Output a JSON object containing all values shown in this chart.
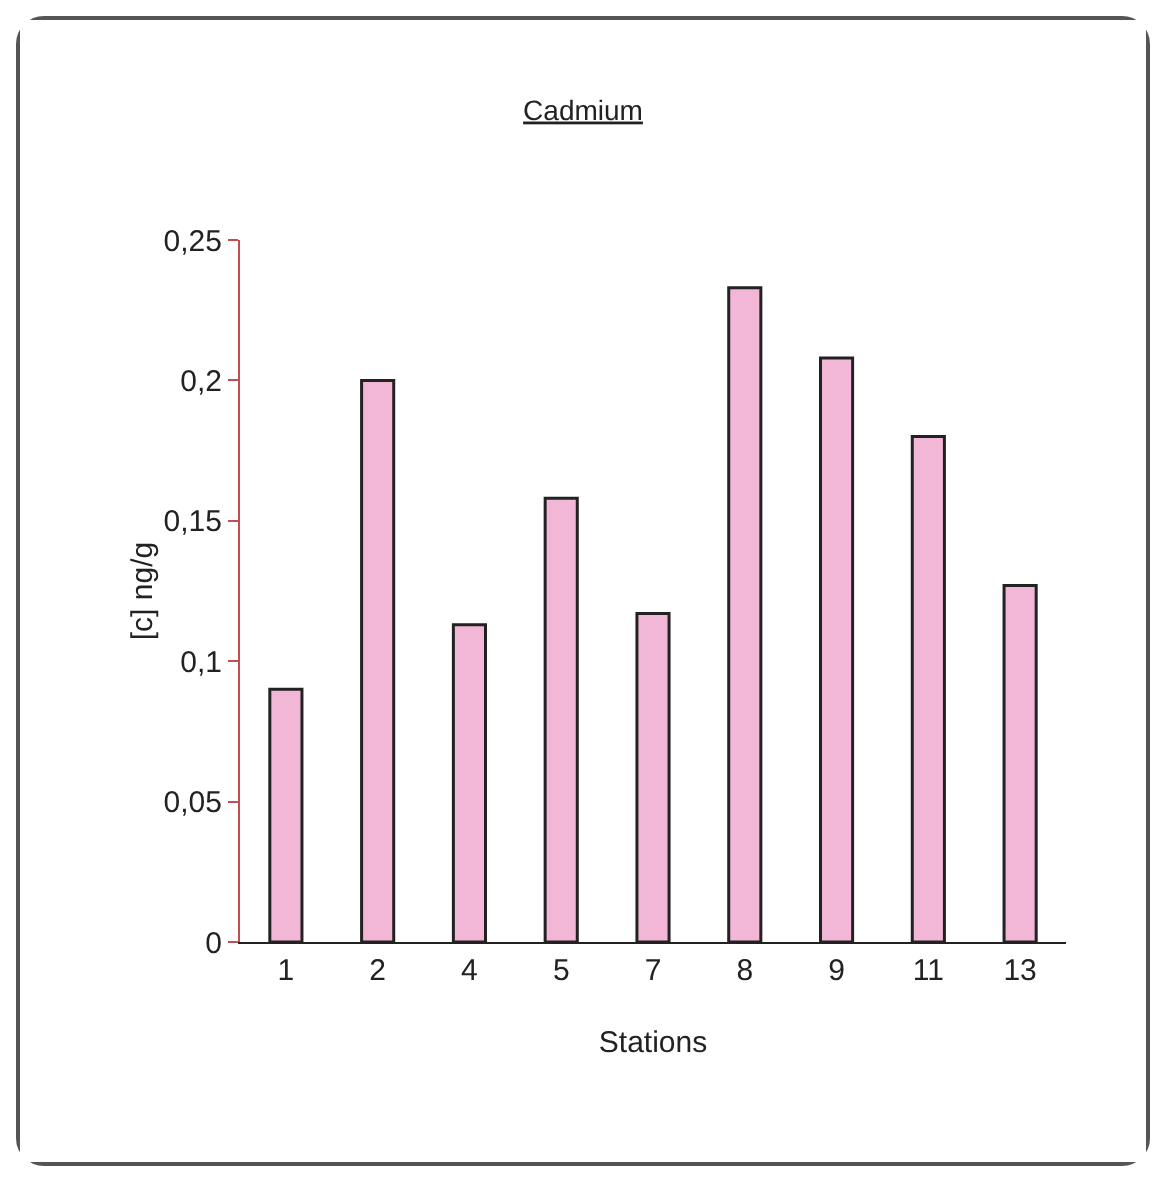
{
  "chart_data": {
    "type": "bar",
    "title": "Cadmium",
    "xlabel": "Stations",
    "ylabel": "[c] ng/g",
    "categories": [
      "1",
      "2",
      "4",
      "5",
      "7",
      "8",
      "9",
      "11",
      "13"
    ],
    "values": [
      0.09,
      0.2,
      0.113,
      0.158,
      0.117,
      0.233,
      0.208,
      0.18,
      0.127
    ],
    "color": "#f2b6d6",
    "ylim": [
      0,
      0.25
    ],
    "yticks": [
      {
        "value": 0,
        "label": "0"
      },
      {
        "value": 0.05,
        "label": "0,05"
      },
      {
        "value": 0.1,
        "label": "0,1"
      },
      {
        "value": 0.15,
        "label": "0,15"
      },
      {
        "value": 0.2,
        "label": "0,2"
      },
      {
        "value": 0.25,
        "label": "0,25"
      }
    ]
  }
}
